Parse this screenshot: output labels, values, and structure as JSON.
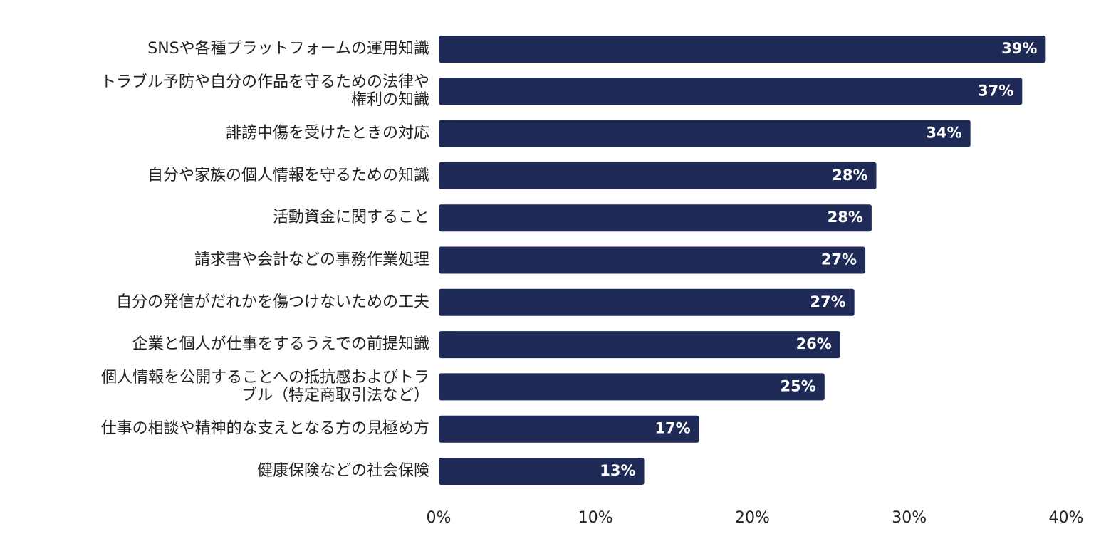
{
  "chart_data": {
    "type": "barh",
    "categories": [
      "SNSや各種プラットフォームの運用知識",
      "トラブル予防や自分の作品を守るための法律や\n権利の知識",
      "誹謗中傷を受けたときの対応",
      "自分や家族の個人情報を守るための知識",
      "活動資金に関すること",
      "請求書や会計などの事務作業処理",
      "自分の発信がだれかを傷つけないための工夫",
      "企業と個人が仕事をするうえでの前提知識",
      "個人情報を公開することへの抵抗感およびトラ\nブル（特定商取引法など）",
      "仕事の相談や精神的な支えとなる方の見極め方",
      "健康保険などの社会保険"
    ],
    "values": [
      38.7,
      37.2,
      33.9,
      27.9,
      27.6,
      27.2,
      26.5,
      25.6,
      24.6,
      16.6,
      13.1
    ],
    "value_labels": [
      "39%",
      "37%",
      "34%",
      "28%",
      "28%",
      "27%",
      "27%",
      "26%",
      "25%",
      "17%",
      "13%"
    ],
    "color": "#1f2a56",
    "xlim": [
      0,
      40
    ],
    "xticks": [
      {
        "value": 0,
        "label": "0%"
      },
      {
        "value": 10,
        "label": "10%"
      },
      {
        "value": 20,
        "label": "20%"
      },
      {
        "value": 30,
        "label": "30%"
      },
      {
        "value": 40,
        "label": "40%"
      }
    ],
    "grid": false
  }
}
